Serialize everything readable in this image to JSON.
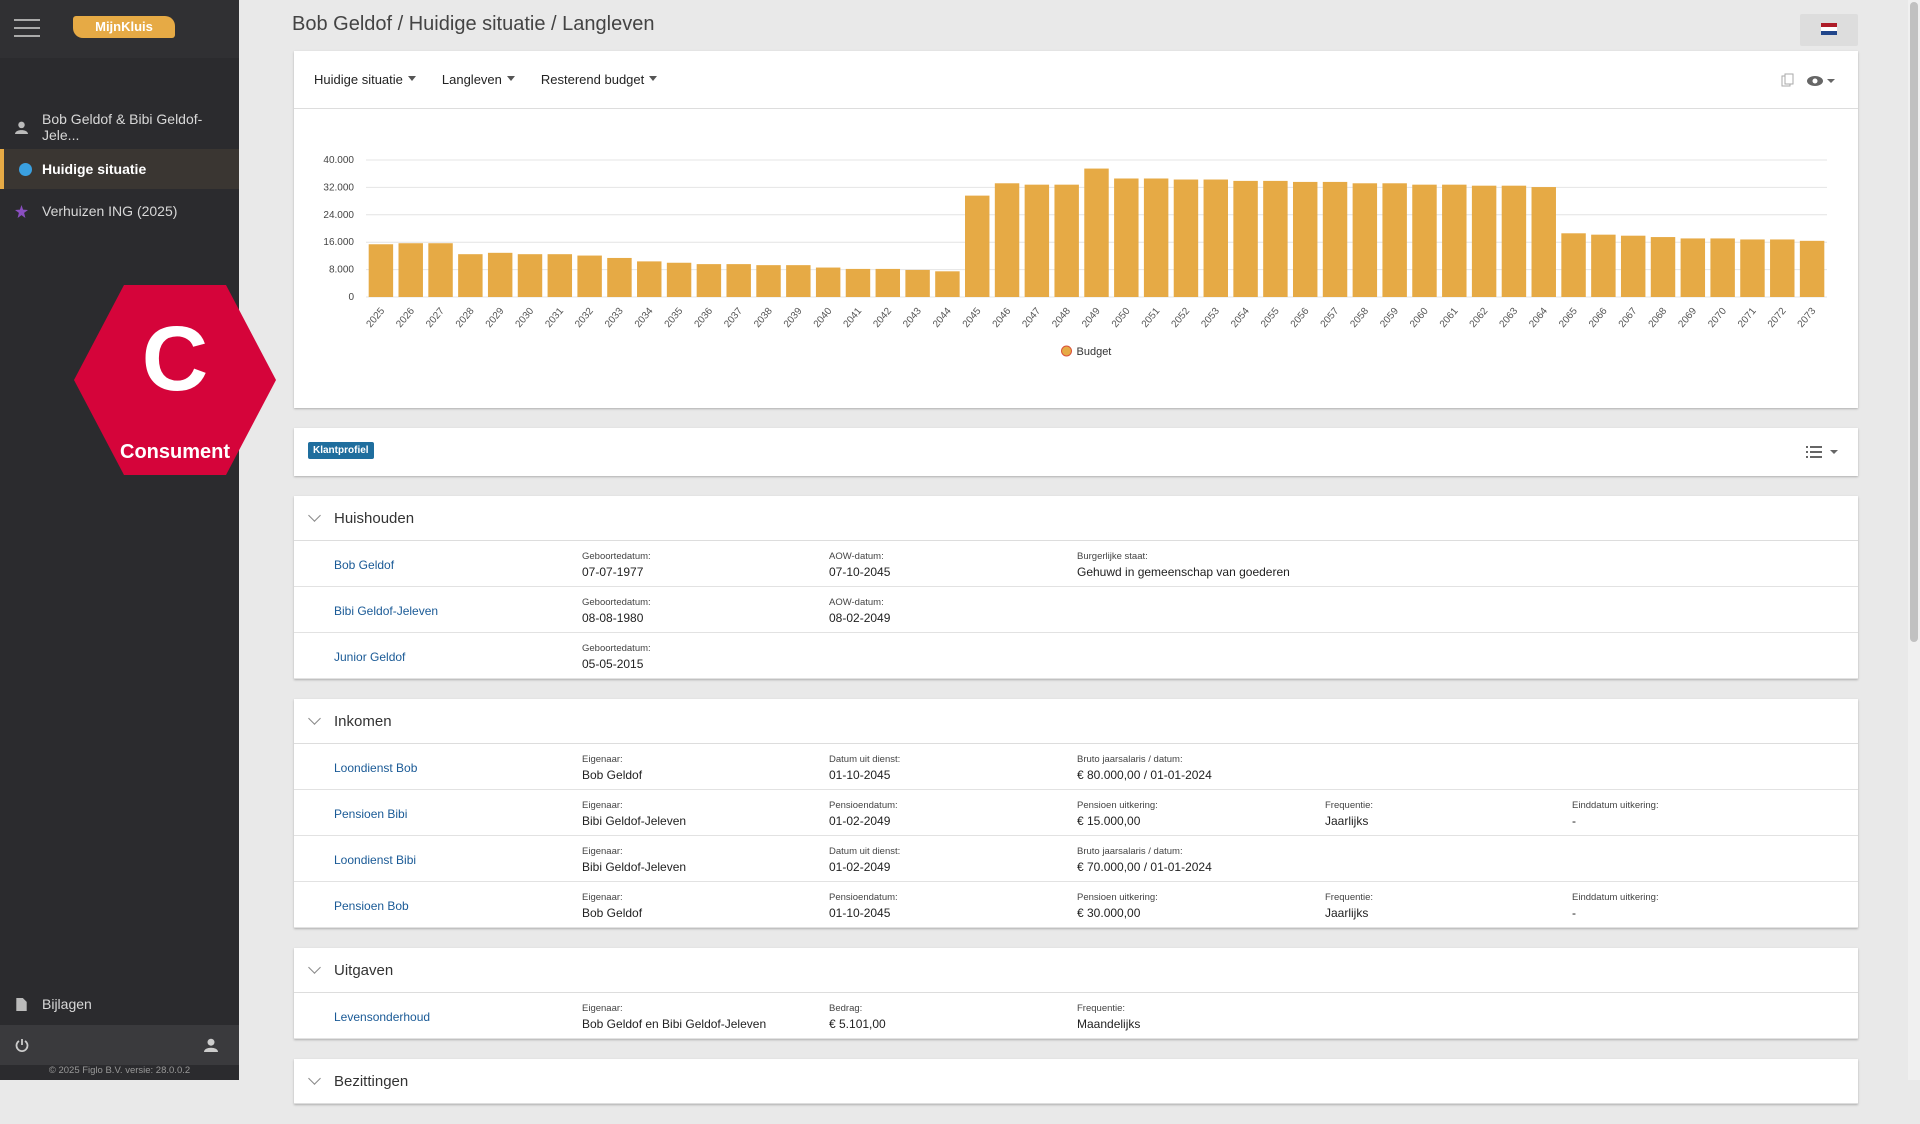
{
  "sidebar": {
    "brand": "MijnKluis",
    "nav": [
      "Bob Geldof & Bibi Geldof-Jele...",
      "Huidige situatie",
      "Verhuizen ING (2025)"
    ],
    "badge_letter": "C",
    "badge_text": "Consument",
    "bottom_item": "Bijlagen",
    "footer": "© 2025 Figlo B.V. versie: 28.0.0.2"
  },
  "breadcrumb": "Bob Geldof / Huidige situatie / Langleven",
  "toolbar": [
    "Huidige situatie",
    "Langleven",
    "Resterend budget"
  ],
  "chart_data": {
    "type": "bar",
    "categories": [
      "2025",
      "2026",
      "2027",
      "2028",
      "2029",
      "2030",
      "2031",
      "2032",
      "2033",
      "2034",
      "2035",
      "2036",
      "2037",
      "2038",
      "2039",
      "2040",
      "2041",
      "2042",
      "2043",
      "2044",
      "2045",
      "2046",
      "2047",
      "2048",
      "2049",
      "2050",
      "2051",
      "2052",
      "2053",
      "2054",
      "2055",
      "2056",
      "2057",
      "2058",
      "2059",
      "2060",
      "2061",
      "2062",
      "2063",
      "2064",
      "2065",
      "2066",
      "2067",
      "2068",
      "2069",
      "2070",
      "2071",
      "2072",
      "2073"
    ],
    "series": [
      {
        "name": "Budget",
        "color": "#e6aa45",
        "values": [
          15400,
          15700,
          15700,
          12500,
          12900,
          12500,
          12500,
          12100,
          11400,
          10400,
          10000,
          9600,
          9600,
          9300,
          9300,
          8600,
          8200,
          8200,
          7900,
          7500,
          29600,
          33200,
          32800,
          32800,
          37500,
          34600,
          34600,
          34300,
          34300,
          33900,
          33900,
          33600,
          33600,
          33200,
          33200,
          32800,
          32800,
          32500,
          32500,
          32100,
          18600,
          18200,
          17900,
          17500,
          17100,
          17100,
          16800,
          16800,
          16400
        ]
      }
    ],
    "ylim": [
      0,
      40000
    ],
    "yticks": [
      0,
      {
        "value": 8000,
        "label": "8.000"
      },
      {
        "value": 16000,
        "label": "16.000"
      },
      {
        "value": 24000,
        "label": "24.000"
      },
      {
        "value": 32000,
        "label": "32.000"
      },
      {
        "value": 40000,
        "label": "40.000"
      }
    ],
    "grid": true,
    "legend": "bottom"
  },
  "tag": "Klantprofiel",
  "sections": [
    {
      "title": "Huishouden",
      "rows": [
        {
          "name": "Bob Geldof",
          "fields": [
            {
              "label": "Geboortedatum:",
              "value": "07-07-1977"
            },
            {
              "label": "AOW-datum:",
              "value": "07-10-2045"
            },
            {
              "label": "Burgerlijke staat:",
              "value": "Gehuwd in gemeenschap van goederen"
            }
          ]
        },
        {
          "name": "Bibi Geldof-Jeleven",
          "fields": [
            {
              "label": "Geboortedatum:",
              "value": "08-08-1980"
            },
            {
              "label": "AOW-datum:",
              "value": "08-02-2049"
            }
          ]
        },
        {
          "name": "Junior Geldof",
          "fields": [
            {
              "label": "Geboortedatum:",
              "value": "05-05-2015"
            }
          ]
        }
      ]
    },
    {
      "title": "Inkomen",
      "rows": [
        {
          "name": "Loondienst Bob",
          "fields": [
            {
              "label": "Eigenaar:",
              "value": "Bob Geldof"
            },
            {
              "label": "Datum uit dienst:",
              "value": "01-10-2045"
            },
            {
              "label": "Bruto jaarsalaris / datum:",
              "value": "€ 80.000,00 / 01-01-2024"
            }
          ]
        },
        {
          "name": "Pensioen Bibi",
          "fields": [
            {
              "label": "Eigenaar:",
              "value": "Bibi Geldof-Jeleven"
            },
            {
              "label": "Pensioendatum:",
              "value": "01-02-2049"
            },
            {
              "label": "Pensioen uitkering:",
              "value": "€ 15.000,00"
            },
            {
              "label": "Frequentie:",
              "value": "Jaarlijks"
            },
            {
              "label": "Einddatum uitkering:",
              "value": "-"
            }
          ]
        },
        {
          "name": "Loondienst Bibi",
          "fields": [
            {
              "label": "Eigenaar:",
              "value": "Bibi Geldof-Jeleven"
            },
            {
              "label": "Datum uit dienst:",
              "value": "01-02-2049"
            },
            {
              "label": "Bruto jaarsalaris / datum:",
              "value": "€ 70.000,00 / 01-01-2024"
            }
          ]
        },
        {
          "name": "Pensioen Bob",
          "fields": [
            {
              "label": "Eigenaar:",
              "value": "Bob Geldof"
            },
            {
              "label": "Pensioendatum:",
              "value": "01-10-2045"
            },
            {
              "label": "Pensioen uitkering:",
              "value": "€ 30.000,00"
            },
            {
              "label": "Frequentie:",
              "value": "Jaarlijks"
            },
            {
              "label": "Einddatum uitkering:",
              "value": "-"
            }
          ]
        }
      ]
    },
    {
      "title": "Uitgaven",
      "rows": [
        {
          "name": "Levensonderhoud",
          "fields": [
            {
              "label": "Eigenaar:",
              "value": "Bob Geldof en Bibi Geldof-Jeleven"
            },
            {
              "label": "Bedrag:",
              "value": "€ 5.101,00"
            },
            {
              "label": "Frequentie:",
              "value": "Maandelijks"
            }
          ]
        }
      ]
    },
    {
      "title": "Bezittingen",
      "rows": []
    }
  ]
}
